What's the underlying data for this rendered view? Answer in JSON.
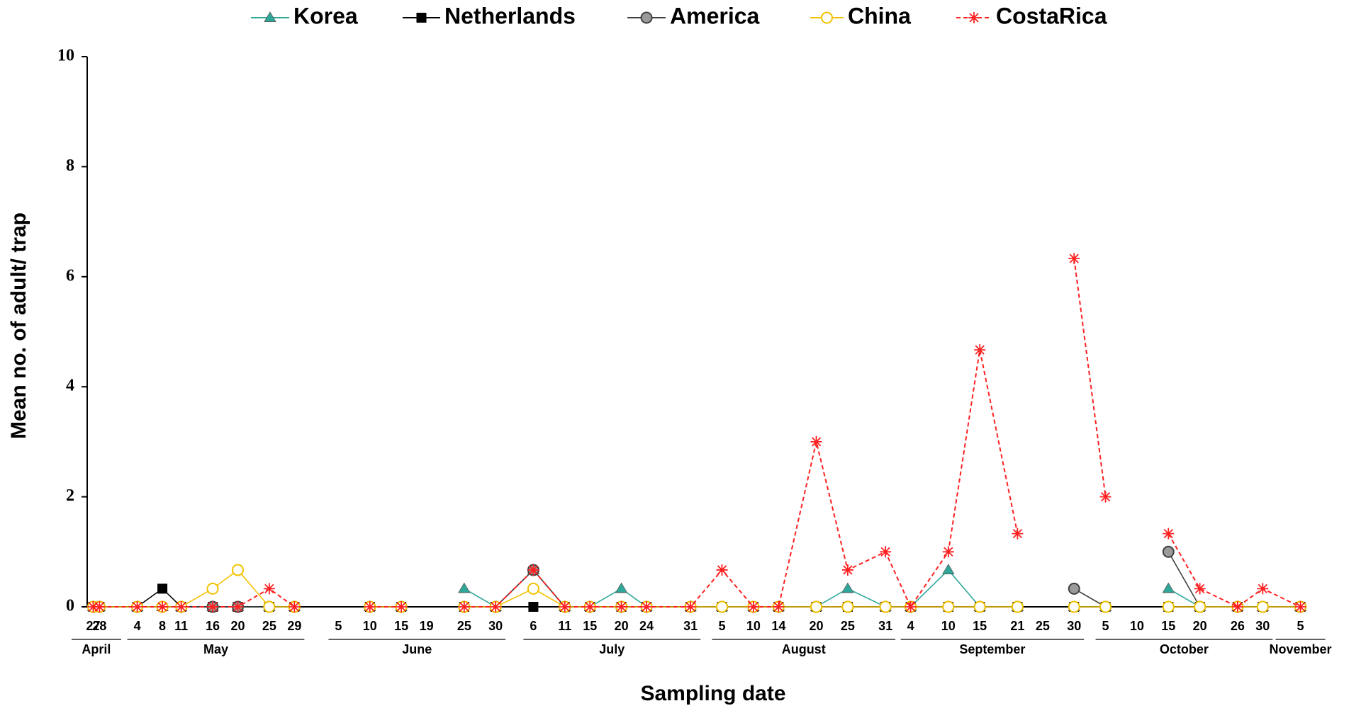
{
  "chart_data": {
    "type": "line",
    "x_label": "Sampling date",
    "y_label": "Mean no. of adult/ trap",
    "months": [
      {
        "name": "April",
        "days": [
          27,
          28
        ]
      },
      {
        "name": "May",
        "days": [
          4,
          8,
          11,
          16,
          20,
          25,
          29
        ]
      },
      {
        "name": "June",
        "days": [
          5,
          10,
          15,
          19,
          25,
          30
        ]
      },
      {
        "name": "July",
        "days": [
          6,
          11,
          15,
          20,
          24,
          31
        ]
      },
      {
        "name": "August",
        "days": [
          5,
          10,
          14,
          20,
          25,
          31
        ]
      },
      {
        "name": "September",
        "days": [
          4,
          10,
          15,
          21,
          25,
          30
        ]
      },
      {
        "name": "October",
        "days": [
          5,
          10,
          15,
          20,
          26,
          30
        ]
      },
      {
        "name": "November",
        "days": [
          5
        ]
      }
    ],
    "ylim": [
      0,
      10
    ],
    "yticks": [
      0,
      2,
      4,
      6,
      8,
      10
    ],
    "series": [
      {
        "name": "Korea",
        "color": "#2fa89a",
        "marker": "triangle",
        "dashed": false,
        "values": [
          0,
          0,
          0,
          0,
          0,
          0,
          0,
          0,
          0,
          null,
          0,
          0,
          null,
          0.33,
          0,
          0.67,
          0,
          0,
          0.33,
          0,
          0,
          0,
          0,
          0,
          0,
          0.33,
          0,
          0,
          0.67,
          0,
          0,
          null,
          0,
          0,
          null,
          0.33,
          0,
          0,
          0,
          0
        ]
      },
      {
        "name": "Netherlands",
        "color": "#000000",
        "marker": "square",
        "dashed": false,
        "values": [
          0,
          0,
          0,
          0.33,
          0,
          0,
          0,
          0,
          0,
          null,
          0,
          0,
          null,
          0,
          0,
          0,
          0,
          0,
          0,
          0,
          0,
          0,
          0,
          0,
          0,
          0,
          0,
          0,
          0,
          0,
          0,
          null,
          0,
          0,
          null,
          0,
          0,
          0,
          0,
          0
        ]
      },
      {
        "name": "America",
        "color": "#404040",
        "marker": "circle",
        "dashed": false,
        "values": [
          0,
          0,
          0,
          0,
          0,
          0,
          0,
          0,
          0,
          null,
          0,
          0,
          null,
          0,
          0,
          0.67,
          0,
          0,
          0,
          0,
          0,
          0,
          0,
          0,
          0,
          0,
          0,
          0,
          0,
          0,
          0,
          null,
          0.33,
          0,
          null,
          1,
          0,
          0,
          0,
          0
        ]
      },
      {
        "name": "China",
        "color": "#f2c200",
        "marker": "open-circle",
        "dashed": false,
        "values": [
          0,
          0,
          0,
          0,
          0,
          0.33,
          0.67,
          0,
          0,
          null,
          0,
          0,
          null,
          0,
          0,
          0.33,
          0,
          0,
          0,
          0,
          0,
          0,
          0,
          0,
          0,
          0,
          0,
          0,
          0,
          0,
          0,
          null,
          0,
          0,
          null,
          0,
          0,
          0,
          0,
          0
        ]
      },
      {
        "name": "CostaRica",
        "color": "#ff2020",
        "marker": "asterisk",
        "dashed": true,
        "values": [
          0,
          0,
          0,
          0,
          0,
          0,
          0,
          0.33,
          0,
          null,
          0,
          0,
          null,
          0,
          0,
          0.67,
          0,
          0,
          0,
          0,
          0,
          0.67,
          0,
          0,
          3,
          0.67,
          1,
          0,
          1,
          4.67,
          1.33,
          null,
          6.33,
          2,
          null,
          1.33,
          0.33,
          0,
          0.33,
          0
        ]
      }
    ]
  }
}
